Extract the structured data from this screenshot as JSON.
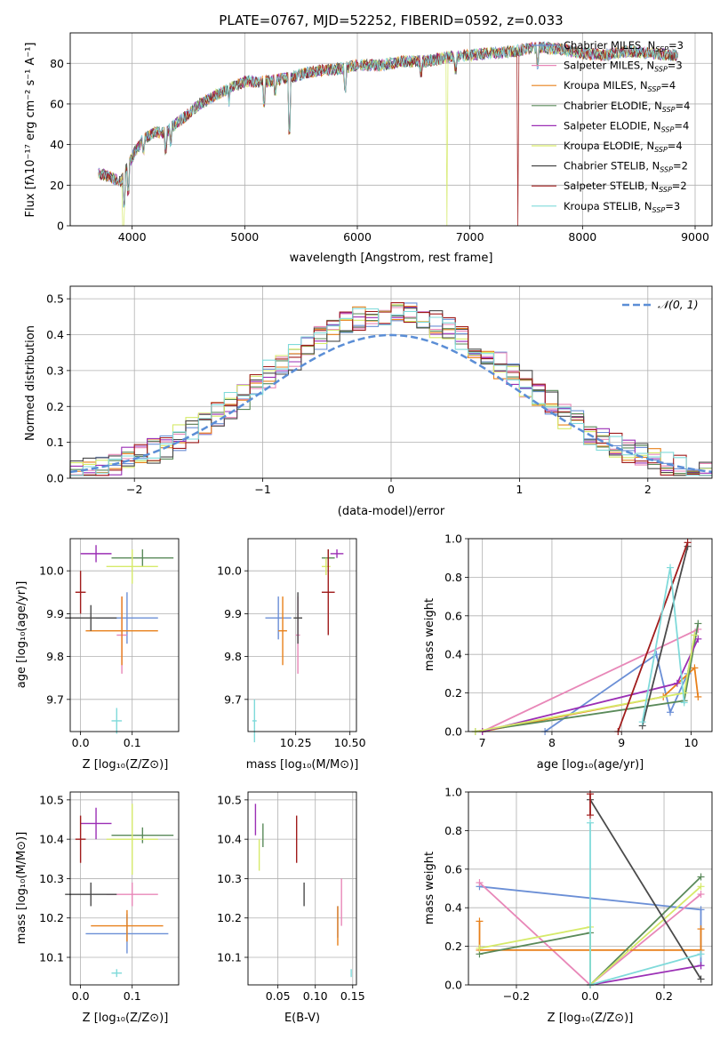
{
  "title": "PLATE=0767, MJD=52252, FIBERID=0592, z=0.033",
  "palette": {
    "Chabrier MILES": "#6b8fd6",
    "Salpeter MILES": "#e887b8",
    "Kroupa MILES": "#e8801a",
    "Chabrier ELODIE": "#5a8a5a",
    "Salpeter ELODIE": "#9b2fb5",
    "Kroupa ELODIE": "#d6ea6a",
    "Chabrier STELIB": "#4a4a4a",
    "Salpeter STELIB": "#a01c1c",
    "Kroupa STELIB": "#7fdada",
    "normal": "#5b8ed6",
    "grid": "#b0b0b0"
  },
  "spectrum": {
    "xlabel": "wavelength [Angstrom, rest frame]",
    "ylabel": "Flux [fλ10⁻¹⁷ erg cm⁻² s⁻¹ A⁻¹]",
    "xticks": [
      "4000",
      "5000",
      "6000",
      "7000",
      "8000",
      "9000"
    ],
    "yticks": [
      "0",
      "20",
      "40",
      "60",
      "80"
    ],
    "legend": [
      {
        "model": "Chabrier MILES",
        "label": "Chabrier MILES, N",
        "sub": "SSP",
        "val": "=3"
      },
      {
        "model": "Salpeter MILES",
        "label": "Salpeter MILES, N",
        "sub": "SSP",
        "val": "=3"
      },
      {
        "model": "Kroupa MILES",
        "label": "Kroupa MILES, N",
        "sub": "SSP",
        "val": "=4"
      },
      {
        "model": "Chabrier ELODIE",
        "label": "Chabrier ELODIE, N",
        "sub": "SSP",
        "val": "=4"
      },
      {
        "model": "Salpeter ELODIE",
        "label": "Salpeter ELODIE, N",
        "sub": "SSP",
        "val": "=4"
      },
      {
        "model": "Kroupa ELODIE",
        "label": "Kroupa ELODIE, N",
        "sub": "SSP",
        "val": "=4"
      },
      {
        "model": "Chabrier STELIB",
        "label": "Chabrier STELIB, N",
        "sub": "SSP",
        "val": "=2"
      },
      {
        "model": "Salpeter STELIB",
        "label": "Salpeter STELIB, N",
        "sub": "SSP",
        "val": "=2"
      },
      {
        "model": "Kroupa STELIB",
        "label": "Kroupa STELIB, N",
        "sub": "SSP",
        "val": "=3"
      }
    ]
  },
  "residuals": {
    "xlabel": "(data-model)/error",
    "ylabel": "Normed distribution",
    "xticks": [
      "−2",
      "−1",
      "0",
      "1",
      "2"
    ],
    "yticks": [
      "0.0",
      "0.1",
      "0.2",
      "0.3",
      "0.4",
      "0.5"
    ],
    "legend_label": "𝒩(0, 1)"
  },
  "age_Z": {
    "xlabel": "Z [log₁₀(Z/Z⊙)]",
    "ylabel": "age  [log₁₀(age/yr)]",
    "xticks": [
      "0.0",
      "0.1"
    ],
    "yticks": [
      "9.7",
      "9.8",
      "9.9",
      "10.0"
    ]
  },
  "age_mass": {
    "xlabel": "mass [log₁₀(M/M⊙)]",
    "xticks": [
      "10.25",
      "10.50"
    ],
    "yticks": [
      "9.7",
      "9.8",
      "9.9",
      "10.0"
    ]
  },
  "mw_age": {
    "xlabel": "age  [log₁₀(age/yr)]",
    "ylabel": "mass weight",
    "xticks": [
      "7",
      "8",
      "9",
      "10"
    ],
    "yticks": [
      "0.0",
      "0.2",
      "0.4",
      "0.6",
      "0.8",
      "1.0"
    ]
  },
  "mass_Z": {
    "xlabel": "Z [log₁₀(Z/Z⊙)]",
    "ylabel": "mass [log₁₀(M/M⊙)]",
    "xticks": [
      "0.0",
      "0.1"
    ],
    "yticks": [
      "10.1",
      "10.2",
      "10.3",
      "10.4",
      "10.5"
    ]
  },
  "mass_ebv": {
    "xlabel": "E(B-V)",
    "xticks": [
      "0.05",
      "0.10",
      "0.15"
    ],
    "yticks": [
      "10.1",
      "10.2",
      "10.3",
      "10.4",
      "10.5"
    ]
  },
  "mw_Z": {
    "xlabel": "Z [log₁₀(Z/Z⊙)]",
    "ylabel": "mass weight",
    "xticks": [
      "−0.2",
      "0.0",
      "0.2"
    ],
    "yticks": [
      "0.0",
      "0.2",
      "0.4",
      "0.6",
      "0.8",
      "1.0"
    ]
  },
  "chart_data": [
    {
      "type": "line",
      "title": "PLATE=0767, MJD=52252, FIBERID=0592, z=0.033",
      "xlabel": "wavelength [Angstrom, rest frame]",
      "xlim": [
        3450,
        9150
      ],
      "ylim": [
        0,
        95
      ],
      "series_note_free": true,
      "continuum": {
        "x": [
          3700,
          3800,
          3900,
          4000,
          4100,
          4200,
          4300,
          4400,
          4500,
          4600,
          4800,
          5000,
          5200,
          5400,
          5600,
          5800,
          6000,
          6200,
          6400,
          6600,
          6800,
          7000,
          7200,
          7400,
          7600,
          7800,
          8000,
          8200,
          8400,
          8600,
          8800
        ],
        "y": [
          26,
          24,
          22,
          34,
          43,
          46,
          46,
          51,
          55,
          60,
          66,
          71,
          71,
          73,
          76,
          77,
          79,
          79,
          81,
          81,
          83,
          84,
          85,
          86,
          88,
          87,
          85,
          84,
          86,
          85,
          84
        ]
      }
    },
    {
      "type": "bar",
      "title": "",
      "xlabel": "(data-model)/error",
      "ylabel": "Normed distribution",
      "xlim": [
        -2.5,
        2.5
      ],
      "ylim": [
        0,
        0.535
      ],
      "normal_curve": {
        "mean": 0,
        "sigma": 1
      }
    },
    {
      "type": "scatter",
      "xlabel": "Z [log₁₀(Z/Z⊙)]",
      "ylabel": "age  [log₁₀(age/yr)]",
      "xlim": [
        -0.02,
        0.19
      ],
      "ylim": [
        9.625,
        10.075
      ],
      "points": [
        {
          "model": "Chabrier MILES",
          "x": 0.09,
          "y": 9.89,
          "xerr": 0.06,
          "yerr": 0.06
        },
        {
          "model": "Salpeter MILES",
          "x": 0.08,
          "y": 9.85,
          "xerr": 0.01,
          "yerr": 0.09
        },
        {
          "model": "Kroupa MILES",
          "x": 0.08,
          "y": 9.86,
          "xerr": 0.07,
          "yerr": 0.08
        },
        {
          "model": "Chabrier ELODIE",
          "x": 0.12,
          "y": 10.03,
          "xerr": 0.06,
          "yerr": 0.02
        },
        {
          "model": "Salpeter ELODIE",
          "x": 0.03,
          "y": 10.04,
          "xerr": 0.03,
          "yerr": 0.02
        },
        {
          "model": "Kroupa ELODIE",
          "x": 0.1,
          "y": 10.01,
          "xerr": 0.05,
          "yerr": 0.04
        },
        {
          "model": "Chabrier STELIB",
          "x": 0.02,
          "y": 9.89,
          "xerr": 0.05,
          "yerr": 0.03
        },
        {
          "model": "Salpeter STELIB",
          "x": 0.0,
          "y": 9.95,
          "xerr": 0.01,
          "yerr": 0.05
        },
        {
          "model": "Kroupa STELIB",
          "x": 0.07,
          "y": 9.65,
          "xerr": 0.01,
          "yerr": 0.03
        }
      ]
    },
    {
      "type": "scatter",
      "xlabel": "mass [log₁₀(M/M⊙)]",
      "xlim": [
        10.03,
        10.53
      ],
      "ylim": [
        9.625,
        10.075
      ],
      "points": [
        {
          "model": "Chabrier MILES",
          "x": 10.17,
          "y": 9.89,
          "xerr": 0.06,
          "yerr": 0.05
        },
        {
          "model": "Salpeter MILES",
          "x": 10.26,
          "y": 9.85,
          "xerr": 0.01,
          "yerr": 0.09
        },
        {
          "model": "Kroupa MILES",
          "x": 10.19,
          "y": 9.86,
          "xerr": 0.02,
          "yerr": 0.08
        },
        {
          "model": "Chabrier ELODIE",
          "x": 10.4,
          "y": 10.03,
          "xerr": 0.03,
          "yerr": 0.02
        },
        {
          "model": "Salpeter ELODIE",
          "x": 10.44,
          "y": 10.04,
          "xerr": 0.03,
          "yerr": 0.01
        },
        {
          "model": "Kroupa ELODIE",
          "x": 10.39,
          "y": 10.01,
          "xerr": 0.02,
          "yerr": 0.02
        },
        {
          "model": "Chabrier STELIB",
          "x": 10.26,
          "y": 9.89,
          "xerr": 0.02,
          "yerr": 0.06
        },
        {
          "model": "Salpeter STELIB",
          "x": 10.4,
          "y": 9.95,
          "xerr": 0.03,
          "yerr": 0.1
        },
        {
          "model": "Kroupa STELIB",
          "x": 10.06,
          "y": 9.65,
          "xerr": 0.01,
          "yerr": 0.05
        }
      ]
    },
    {
      "type": "line",
      "xlabel": "age  [log₁₀(age/yr)]",
      "ylabel": "mass weight",
      "xlim": [
        6.8,
        10.3
      ],
      "ylim": [
        0,
        1.0
      ],
      "series": [
        {
          "model": "Chabrier MILES",
          "x": [
            7.9,
            9.5,
            9.7,
            9.95,
            10.05
          ],
          "y": [
            0.0,
            0.4,
            0.1,
            0.3,
            0.5
          ]
        },
        {
          "model": "Salpeter MILES",
          "x": [
            7.0,
            10.1
          ],
          "y": [
            0.0,
            0.53
          ]
        },
        {
          "model": "Kroupa MILES",
          "x": [
            7.0,
            9.6,
            10.05,
            10.1
          ],
          "y": [
            0.0,
            0.18,
            0.33,
            0.18
          ]
        },
        {
          "model": "Chabrier ELODIE",
          "x": [
            6.9,
            9.9,
            10.1
          ],
          "y": [
            0.0,
            0.16,
            0.56
          ]
        },
        {
          "model": "Salpeter ELODIE",
          "x": [
            7.0,
            9.8,
            10.1
          ],
          "y": [
            0.0,
            0.25,
            0.48
          ]
        },
        {
          "model": "Kroupa ELODIE",
          "x": [
            6.9,
            9.9,
            10.05
          ],
          "y": [
            0.0,
            0.2,
            0.5
          ]
        },
        {
          "model": "Chabrier STELIB",
          "x": [
            9.3,
            9.95
          ],
          "y": [
            0.03,
            0.96
          ]
        },
        {
          "model": "Salpeter STELIB",
          "x": [
            8.95,
            9.95
          ],
          "y": [
            0.0,
            0.98
          ]
        },
        {
          "model": "Kroupa STELIB",
          "x": [
            9.3,
            9.7,
            9.9
          ],
          "y": [
            0.05,
            0.85,
            0.15
          ]
        }
      ]
    },
    {
      "type": "scatter",
      "xlabel": "Z [log₁₀(Z/Z⊙)]",
      "ylabel": "mass [log₁₀(M/M⊙)]",
      "xlim": [
        -0.02,
        0.19
      ],
      "ylim": [
        10.03,
        10.52
      ],
      "points": [
        {
          "model": "Chabrier MILES",
          "x": 0.09,
          "y": 10.16,
          "xerr": 0.08,
          "yerr": 0.05
        },
        {
          "model": "Salpeter MILES",
          "x": 0.1,
          "y": 10.26,
          "xerr": 0.05,
          "yerr": 0.03
        },
        {
          "model": "Kroupa MILES",
          "x": 0.09,
          "y": 10.18,
          "xerr": 0.07,
          "yerr": 0.04
        },
        {
          "model": "Chabrier ELODIE",
          "x": 0.12,
          "y": 10.41,
          "xerr": 0.06,
          "yerr": 0.02
        },
        {
          "model": "Salpeter ELODIE",
          "x": 0.03,
          "y": 10.44,
          "xerr": 0.03,
          "yerr": 0.04
        },
        {
          "model": "Kroupa ELODIE",
          "x": 0.1,
          "y": 10.4,
          "xerr": 0.05,
          "yerr": 0.09
        },
        {
          "model": "Chabrier STELIB",
          "x": 0.02,
          "y": 10.26,
          "xerr": 0.05,
          "yerr": 0.03
        },
        {
          "model": "Salpeter STELIB",
          "x": 0.0,
          "y": 10.4,
          "xerr": 0.01,
          "yerr": 0.06
        },
        {
          "model": "Kroupa STELIB",
          "x": 0.07,
          "y": 10.06,
          "xerr": 0.01,
          "yerr": 0.01
        }
      ]
    },
    {
      "type": "scatter",
      "xlabel": "E(B-V)",
      "xlim": [
        0.01,
        0.155
      ],
      "ylim": [
        10.03,
        10.52
      ],
      "points": [
        {
          "model": "Chabrier MILES",
          "x": 0.13,
          "y": 10.19,
          "yerr": 0.04
        },
        {
          "model": "Salpeter MILES",
          "x": 0.135,
          "y": 10.24,
          "yerr": 0.06
        },
        {
          "model": "Kroupa MILES",
          "x": 0.13,
          "y": 10.18,
          "yerr": 0.05
        },
        {
          "model": "Chabrier ELODIE",
          "x": 0.03,
          "y": 10.41,
          "yerr": 0.03
        },
        {
          "model": "Salpeter ELODIE",
          "x": 0.02,
          "y": 10.45,
          "yerr": 0.04
        },
        {
          "model": "Kroupa ELODIE",
          "x": 0.025,
          "y": 10.36,
          "yerr": 0.04
        },
        {
          "model": "Chabrier STELIB",
          "x": 0.085,
          "y": 10.26,
          "yerr": 0.03
        },
        {
          "model": "Salpeter STELIB",
          "x": 0.075,
          "y": 10.4,
          "yerr": 0.06
        },
        {
          "model": "Kroupa STELIB",
          "x": 0.148,
          "y": 10.06,
          "yerr": 0.01
        }
      ]
    },
    {
      "type": "line",
      "xlabel": "Z [log₁₀(Z/Z⊙)]",
      "ylabel": "mass weight",
      "xlim": [
        -0.33,
        0.33
      ],
      "ylim": [
        0,
        1.0
      ],
      "series": [
        {
          "model": "Chabrier MILES",
          "x": [
            -0.3,
            0.3,
            0.3
          ],
          "y": [
            0.51,
            0.39,
            0.1
          ]
        },
        {
          "model": "Salpeter MILES",
          "x": [
            -0.3,
            0.0,
            0.3
          ],
          "y": [
            0.53,
            0.0,
            0.47
          ]
        },
        {
          "model": "Kroupa MILES",
          "x": [
            -0.3,
            -0.3,
            0.3,
            0.3
          ],
          "y": [
            0.33,
            0.18,
            0.18,
            0.29
          ]
        },
        {
          "model": "Chabrier ELODIE",
          "x": [
            -0.3,
            0.0,
            0.0,
            0.3
          ],
          "y": [
            0.16,
            0.27,
            0.0,
            0.56
          ]
        },
        {
          "model": "Salpeter ELODIE",
          "x": [
            0.0,
            0.3
          ],
          "y": [
            0.0,
            0.1
          ]
        },
        {
          "model": "Kroupa ELODIE",
          "x": [
            -0.3,
            0.0,
            0.0,
            0.3
          ],
          "y": [
            0.19,
            0.3,
            0.0,
            0.51
          ]
        },
        {
          "model": "Chabrier STELIB",
          "x": [
            0.0,
            0.3
          ],
          "y": [
            0.96,
            0.03
          ]
        },
        {
          "model": "Salpeter STELIB",
          "x": [
            0.0,
            0.0
          ],
          "y": [
            0.88,
            0.99
          ]
        },
        {
          "model": "Kroupa STELIB",
          "x": [
            0.0,
            0.0,
            0.3
          ],
          "y": [
            0.84,
            0.0,
            0.16
          ]
        }
      ]
    }
  ]
}
